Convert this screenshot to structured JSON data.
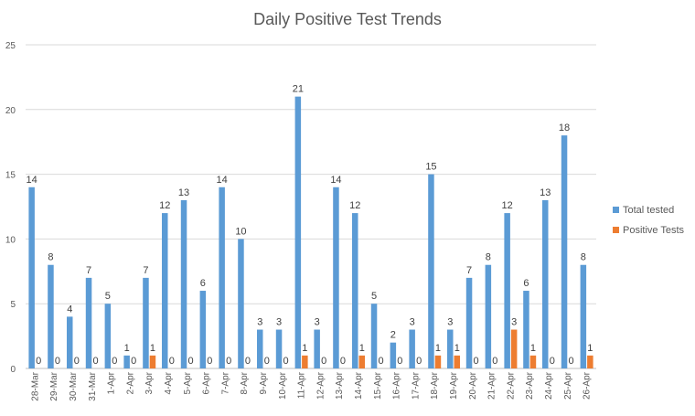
{
  "chart_data": {
    "type": "bar",
    "title": "Daily Positive Test Trends",
    "xlabel": "",
    "ylabel": "",
    "ylim": [
      0,
      25
    ],
    "yticks": [
      0,
      5,
      10,
      15,
      20,
      25
    ],
    "grid": true,
    "legend": "right",
    "categories": [
      "28-Mar",
      "29-Mar",
      "30-Mar",
      "31-Mar",
      "1-Apr",
      "2-Apr",
      "3-Apr",
      "4-Apr",
      "5-Apr",
      "6-Apr",
      "7-Apr",
      "8-Apr",
      "9-Apr",
      "10-Apr",
      "11-Apr",
      "12-Apr",
      "13-Apr",
      "14-Apr",
      "15-Apr",
      "16-Apr",
      "17-Apr",
      "18-Apr",
      "19-Apr",
      "20-Apr",
      "21-Apr",
      "22-Apr",
      "23-Apr",
      "24-Apr",
      "25-Apr",
      "26-Apr"
    ],
    "series": [
      {
        "name": "Total tested",
        "color": "#5b9bd5",
        "values": [
          14,
          8,
          4,
          7,
          5,
          1,
          7,
          12,
          13,
          6,
          14,
          10,
          3,
          3,
          21,
          3,
          14,
          12,
          5,
          2,
          3,
          15,
          3,
          7,
          8,
          12,
          6,
          13,
          18,
          8
        ]
      },
      {
        "name": "Positive Tests",
        "color": "#ed7d31",
        "values": [
          0,
          0,
          0,
          0,
          0,
          0,
          1,
          0,
          0,
          0,
          0,
          0,
          0,
          0,
          1,
          0,
          0,
          1,
          0,
          0,
          0,
          1,
          1,
          0,
          0,
          3,
          1,
          0,
          0,
          1
        ]
      }
    ]
  }
}
